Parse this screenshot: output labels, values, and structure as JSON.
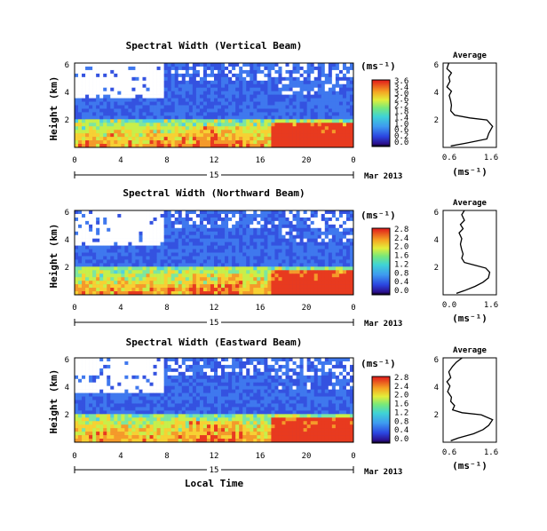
{
  "figure": {
    "xlabel": "Local Time"
  },
  "chart_data": [
    {
      "type": "heatmap",
      "title": "Spectral Width (Vertical Beam)",
      "ylabel": "Height (km)",
      "yticks": [
        "6",
        "4",
        "2"
      ],
      "ylim": [
        0,
        6
      ],
      "xticks": [
        "0",
        "4",
        "8",
        "12",
        "16",
        "20",
        "0"
      ],
      "xlim": [
        0,
        24
      ],
      "date_label": "15",
      "date_suffix": "Mar 2013",
      "colorbar": {
        "unit": "(ms⁻¹)",
        "ticks": [
          "3.6",
          "3.4",
          "3.0",
          "2.6",
          "2.2",
          "1.8",
          "1.4",
          "1.0",
          "0.6",
          "0.2",
          "0.0"
        ],
        "range": [
          0,
          3.6
        ]
      },
      "profile": {
        "title": "Average",
        "yticks": [
          "6",
          "4",
          "2"
        ],
        "xticks": [
          "0.6",
          "1.6"
        ],
        "xlabel": "(ms⁻¹)",
        "xlim": [
          0.4,
          1.8
        ],
        "ylim": [
          0,
          6
        ],
        "points": [
          [
            0.55,
            6
          ],
          [
            0.5,
            5.6
          ],
          [
            0.62,
            5.3
          ],
          [
            0.55,
            5
          ],
          [
            0.58,
            4.7
          ],
          [
            0.5,
            4.3
          ],
          [
            0.62,
            4
          ],
          [
            0.56,
            3.7
          ],
          [
            0.6,
            3.3
          ],
          [
            0.62,
            3
          ],
          [
            0.6,
            2.6
          ],
          [
            0.7,
            2.3
          ],
          [
            1.1,
            2.1
          ],
          [
            1.55,
            1.95
          ],
          [
            1.7,
            1.5
          ],
          [
            1.6,
            1.0
          ],
          [
            1.55,
            0.6
          ],
          [
            1.0,
            0.3
          ],
          [
            0.6,
            0.1
          ]
        ]
      }
    },
    {
      "type": "heatmap",
      "title": "Spectral Width (Northward Beam)",
      "ylabel": "Height (km)",
      "yticks": [
        "6",
        "4",
        "2"
      ],
      "ylim": [
        0,
        6
      ],
      "xticks": [
        "0",
        "4",
        "8",
        "12",
        "16",
        "20",
        "0"
      ],
      "xlim": [
        0,
        24
      ],
      "date_label": "15",
      "date_suffix": "Mar 2013",
      "colorbar": {
        "unit": "(ms⁻¹)",
        "ticks": [
          "2.8",
          "2.4",
          "2.0",
          "1.6",
          "1.2",
          "0.8",
          "0.4",
          "0.0"
        ],
        "range": [
          0,
          2.8
        ]
      },
      "profile": {
        "title": "Average",
        "yticks": [
          "6",
          "4",
          "2"
        ],
        "xticks": [
          "0.0",
          "1.6"
        ],
        "xlabel": "(ms⁻¹)",
        "xlim": [
          -0.2,
          1.8
        ],
        "ylim": [
          0,
          6
        ],
        "points": [
          [
            0.6,
            6
          ],
          [
            0.5,
            5.7
          ],
          [
            0.6,
            5.3
          ],
          [
            0.45,
            5
          ],
          [
            0.55,
            4.7
          ],
          [
            0.4,
            4.4
          ],
          [
            0.5,
            4
          ],
          [
            0.45,
            3.6
          ],
          [
            0.5,
            3.2
          ],
          [
            0.55,
            2.9
          ],
          [
            0.5,
            2.6
          ],
          [
            0.6,
            2.3
          ],
          [
            1.0,
            2.1
          ],
          [
            1.4,
            1.9
          ],
          [
            1.55,
            1.6
          ],
          [
            1.5,
            1.2
          ],
          [
            1.3,
            0.9
          ],
          [
            1.0,
            0.6
          ],
          [
            0.6,
            0.3
          ],
          [
            0.3,
            0.1
          ]
        ]
      }
    },
    {
      "type": "heatmap",
      "title": "Spectral Width (Eastward Beam)",
      "ylabel": "Height (km)",
      "yticks": [
        "6",
        "4",
        "2"
      ],
      "ylim": [
        0,
        6
      ],
      "xticks": [
        "0",
        "4",
        "8",
        "12",
        "16",
        "20",
        "0"
      ],
      "xlim": [
        0,
        24
      ],
      "date_label": "15",
      "date_suffix": "Mar 2013",
      "colorbar": {
        "unit": "(ms⁻¹)",
        "ticks": [
          "2.8",
          "2.4",
          "2.0",
          "1.6",
          "1.2",
          "0.8",
          "0.4",
          "0.0"
        ],
        "range": [
          0,
          2.8
        ]
      },
      "profile": {
        "title": "Average",
        "yticks": [
          "6",
          "4",
          "2"
        ],
        "xticks": [
          "0.6",
          "1.6"
        ],
        "xlabel": "(ms⁻¹)",
        "xlim": [
          0.4,
          1.8
        ],
        "ylim": [
          0,
          6
        ],
        "points": [
          [
            0.9,
            6
          ],
          [
            0.75,
            5.7
          ],
          [
            0.65,
            5.4
          ],
          [
            0.55,
            5
          ],
          [
            0.6,
            4.6
          ],
          [
            0.5,
            4.3
          ],
          [
            0.58,
            4
          ],
          [
            0.52,
            3.6
          ],
          [
            0.62,
            3.2
          ],
          [
            0.6,
            2.9
          ],
          [
            0.7,
            2.6
          ],
          [
            0.65,
            2.3
          ],
          [
            0.9,
            2.1
          ],
          [
            1.4,
            1.95
          ],
          [
            1.7,
            1.6
          ],
          [
            1.6,
            1.2
          ],
          [
            1.45,
            0.9
          ],
          [
            1.2,
            0.6
          ],
          [
            0.8,
            0.3
          ],
          [
            0.6,
            0.1
          ]
        ]
      }
    }
  ]
}
